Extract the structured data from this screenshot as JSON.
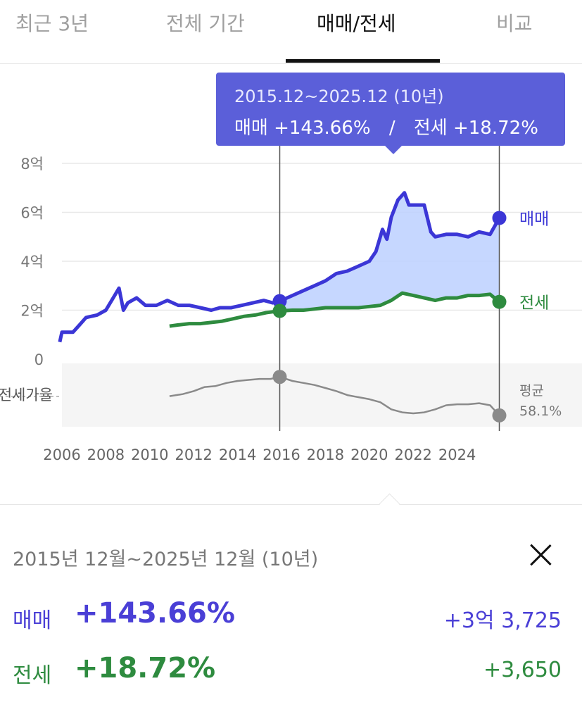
{
  "tabs": [
    {
      "label": "최근 3년",
      "active": false
    },
    {
      "label": "전체 기간",
      "active": false
    },
    {
      "label": "매매/전세",
      "active": true
    },
    {
      "label": "비교",
      "active": false
    }
  ],
  "tooltip": {
    "period": "2015.12~2025.12 (10년)",
    "sale_label": "매매",
    "sale_change": "+143.66%",
    "separator": "/",
    "jeonse_label": "전세",
    "jeonse_change": "+18.72%"
  },
  "colors": {
    "sale": "#3b36d6",
    "jeonse": "#2e8b3f",
    "ratio": "#8a8a8a",
    "tooltip_bg": "#5b5fd9",
    "sale_fill": "#bcd0ff"
  },
  "chart_data": {
    "type": "line",
    "y_ticks": [
      "8억",
      "6억",
      "4억",
      "2억",
      "0"
    ],
    "ratio_label": "전세가율",
    "x_ticks": [
      "2006",
      "2008",
      "2010",
      "2012",
      "2014",
      "2016",
      "2018",
      "2020",
      "2022",
      "2024"
    ],
    "ylim": [
      0,
      8
    ],
    "selection": {
      "start": 2015.92,
      "end": 2025.92
    },
    "series": [
      {
        "name": "매매",
        "x": [
          2005.9,
          2006.0,
          2006.5,
          2006.8,
          2007.1,
          2007.6,
          2008.0,
          2008.4,
          2008.6,
          2008.8,
          2009.0,
          2009.4,
          2009.8,
          2010.3,
          2010.8,
          2011.3,
          2011.8,
          2012.3,
          2012.8,
          2013.2,
          2013.7,
          2014.2,
          2014.7,
          2015.2,
          2015.6,
          2015.92,
          2016.5,
          2017.0,
          2017.5,
          2018.0,
          2018.5,
          2019.0,
          2019.5,
          2020.0,
          2020.3,
          2020.6,
          2020.8,
          2021.0,
          2021.3,
          2021.6,
          2021.8,
          2022.0,
          2022.2,
          2022.5,
          2022.8,
          2023.0,
          2023.5,
          2024.0,
          2024.5,
          2025.0,
          2025.5,
          2025.92
        ],
        "values": [
          0.7,
          1.1,
          1.1,
          1.4,
          1.7,
          1.8,
          2.0,
          2.6,
          2.9,
          2.0,
          2.3,
          2.5,
          2.2,
          2.2,
          2.4,
          2.2,
          2.2,
          2.1,
          2.0,
          2.1,
          2.1,
          2.2,
          2.3,
          2.4,
          2.3,
          2.37,
          2.6,
          2.8,
          3.0,
          3.2,
          3.5,
          3.6,
          3.8,
          4.0,
          4.4,
          5.3,
          4.9,
          5.8,
          6.5,
          6.8,
          6.3,
          6.3,
          6.3,
          6.3,
          5.2,
          5.0,
          5.1,
          5.1,
          5.0,
          5.2,
          5.1,
          5.77
        ]
      },
      {
        "name": "전세",
        "x": [
          2010.9,
          2011.3,
          2011.8,
          2012.3,
          2012.8,
          2013.3,
          2013.8,
          2014.3,
          2014.8,
          2015.3,
          2015.92,
          2016.5,
          2017.0,
          2017.5,
          2018.0,
          2018.5,
          2019.0,
          2019.5,
          2020.0,
          2020.5,
          2021.0,
          2021.5,
          2022.0,
          2022.5,
          2023.0,
          2023.5,
          2024.0,
          2024.5,
          2025.0,
          2025.5,
          2025.92
        ],
        "values": [
          1.35,
          1.4,
          1.45,
          1.45,
          1.5,
          1.55,
          1.65,
          1.75,
          1.8,
          1.9,
          1.97,
          2.0,
          2.0,
          2.05,
          2.1,
          2.1,
          2.1,
          2.1,
          2.15,
          2.2,
          2.4,
          2.7,
          2.6,
          2.5,
          2.4,
          2.5,
          2.5,
          2.6,
          2.6,
          2.65,
          2.34
        ]
      },
      {
        "name": "전세가율",
        "x": [
          2010.9,
          2011.5,
          2012.0,
          2012.5,
          2013.0,
          2013.5,
          2014.0,
          2014.5,
          2015.0,
          2015.5,
          2015.92,
          2016.5,
          2017.0,
          2017.5,
          2018.0,
          2018.5,
          2019.0,
          2019.5,
          2020.0,
          2020.5,
          2021.0,
          2021.5,
          2022.0,
          2022.5,
          2023.0,
          2023.5,
          2024.0,
          2024.5,
          2025.0,
          2025.5,
          2025.92
        ],
        "values": [
          61,
          63,
          66,
          70,
          71,
          74,
          76,
          77,
          78,
          78,
          80,
          76,
          74,
          72,
          69,
          66,
          62,
          60,
          58,
          55,
          48,
          45,
          44,
          45,
          48,
          52,
          53,
          53,
          54,
          52,
          42
        ]
      }
    ],
    "end_labels": {
      "sale": "매매",
      "jeonse": "전세"
    },
    "average_label": "평균",
    "average_value": "58.1%",
    "average_ratio": 58.1
  },
  "summary": {
    "period": "2015년 12월~2025년 12월 (10년)",
    "sale": {
      "label": "매매",
      "pct": "+143.66%",
      "amount": "+3억 3,725"
    },
    "jeonse": {
      "label": "전세",
      "pct": "+18.72%",
      "amount": "+3,650"
    }
  }
}
